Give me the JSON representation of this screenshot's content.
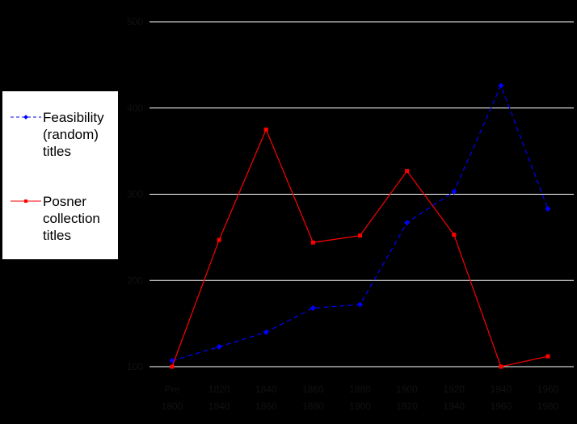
{
  "chart_data": {
    "type": "line",
    "categories": [
      [
        "Pre",
        "1800"
      ],
      [
        "1820",
        "1840"
      ],
      [
        "1840",
        "1860"
      ],
      [
        "1860",
        "1880"
      ],
      [
        "1880",
        "1900"
      ],
      [
        "1900",
        "1920"
      ],
      [
        "1920",
        "1940"
      ],
      [
        "1940",
        "1960"
      ],
      [
        "1960",
        "1980"
      ]
    ],
    "y_ticks": [
      "100",
      "200",
      "300",
      "400",
      "500"
    ],
    "ylim": [
      100,
      500
    ],
    "grid": true,
    "legend_position": "left",
    "series": [
      {
        "name": "Feasibility\n(random)\ntitles",
        "color": "#0000ff",
        "style": "dashed",
        "marker": "diamond",
        "values": [
          107,
          123,
          140,
          168,
          172,
          267,
          303,
          426,
          283
        ]
      },
      {
        "name": "Posner\ncollection\ntitles",
        "color": "#ff0000",
        "style": "solid",
        "marker": "square",
        "values": [
          100,
          247,
          375,
          244,
          252,
          327,
          253,
          100,
          112
        ]
      }
    ]
  },
  "colors": {
    "background": "#000000",
    "grid": "#ffffff",
    "legend_background": "#ffffff"
  }
}
